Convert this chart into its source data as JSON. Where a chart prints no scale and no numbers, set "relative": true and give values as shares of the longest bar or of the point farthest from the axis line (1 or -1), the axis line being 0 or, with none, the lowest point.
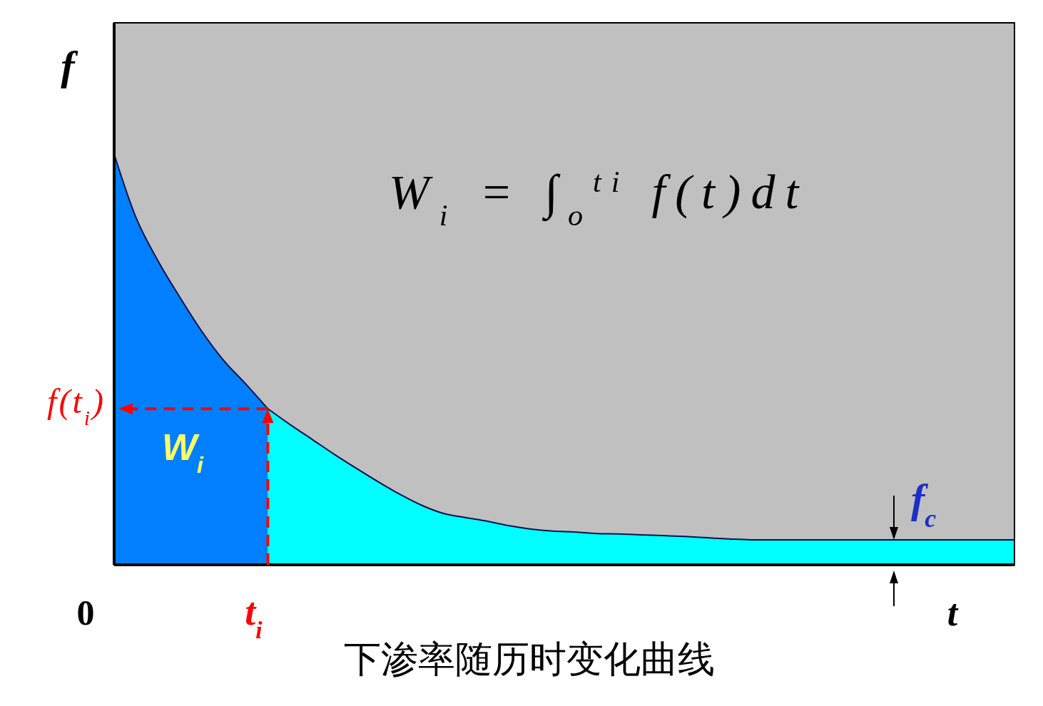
{
  "chart_data": {
    "type": "area",
    "title": "下渗率随历时变化曲线",
    "xlabel": "t",
    "ylabel": "f",
    "relative": true,
    "categories": [
      null,
      null,
      null,
      null,
      null,
      null,
      null,
      null,
      null,
      null,
      null,
      null,
      null,
      null,
      null,
      null,
      null,
      null,
      null,
      null,
      null,
      null,
      null,
      null,
      null,
      null,
      null,
      null,
      null,
      null,
      null,
      null,
      null,
      null,
      null,
      null,
      null,
      null,
      null,
      null,
      null,
      null
    ],
    "series": [
      {
        "color": "#0080ff",
        "values": [
          1,
          0.845,
          0.74,
          0.651,
          0.568,
          0.497,
          0.44,
          0.38,
          null,
          null,
          null,
          null,
          null,
          null,
          null,
          null,
          null,
          null,
          null,
          null,
          null,
          null,
          null,
          null,
          null,
          null,
          null,
          null,
          null,
          null,
          null,
          null,
          null,
          null,
          null,
          null,
          null,
          null,
          null,
          null,
          null,
          null
        ]
      },
      {
        "color": "#00ffff",
        "values": [
          null,
          null,
          null,
          null,
          null,
          null,
          null,
          0.38,
          0.342,
          0.306,
          0.27,
          0.236,
          0.203,
          0.172,
          0.145,
          0.125,
          0.115,
          0.106,
          0.095,
          0.087,
          0.082,
          0.08,
          0.076,
          0.075,
          0.073,
          0.071,
          0.069,
          0.066,
          0.063,
          0.061,
          0.061,
          0.061,
          0.061,
          0.061,
          0.061,
          0.061,
          0.061,
          0.061,
          0.061,
          0.061,
          0.061,
          0.061
        ]
      }
    ],
    "annotations": [
      "W$_{i}$ = ∫$_{o}$$^{ti}$ f(t)dt",
      "W$_{i}$",
      "0",
      "t$_{i}$",
      "f(t$_{i}$)",
      {
        "text": "f$_{c}$",
        "y": 0.061
      }
    ]
  }
}
